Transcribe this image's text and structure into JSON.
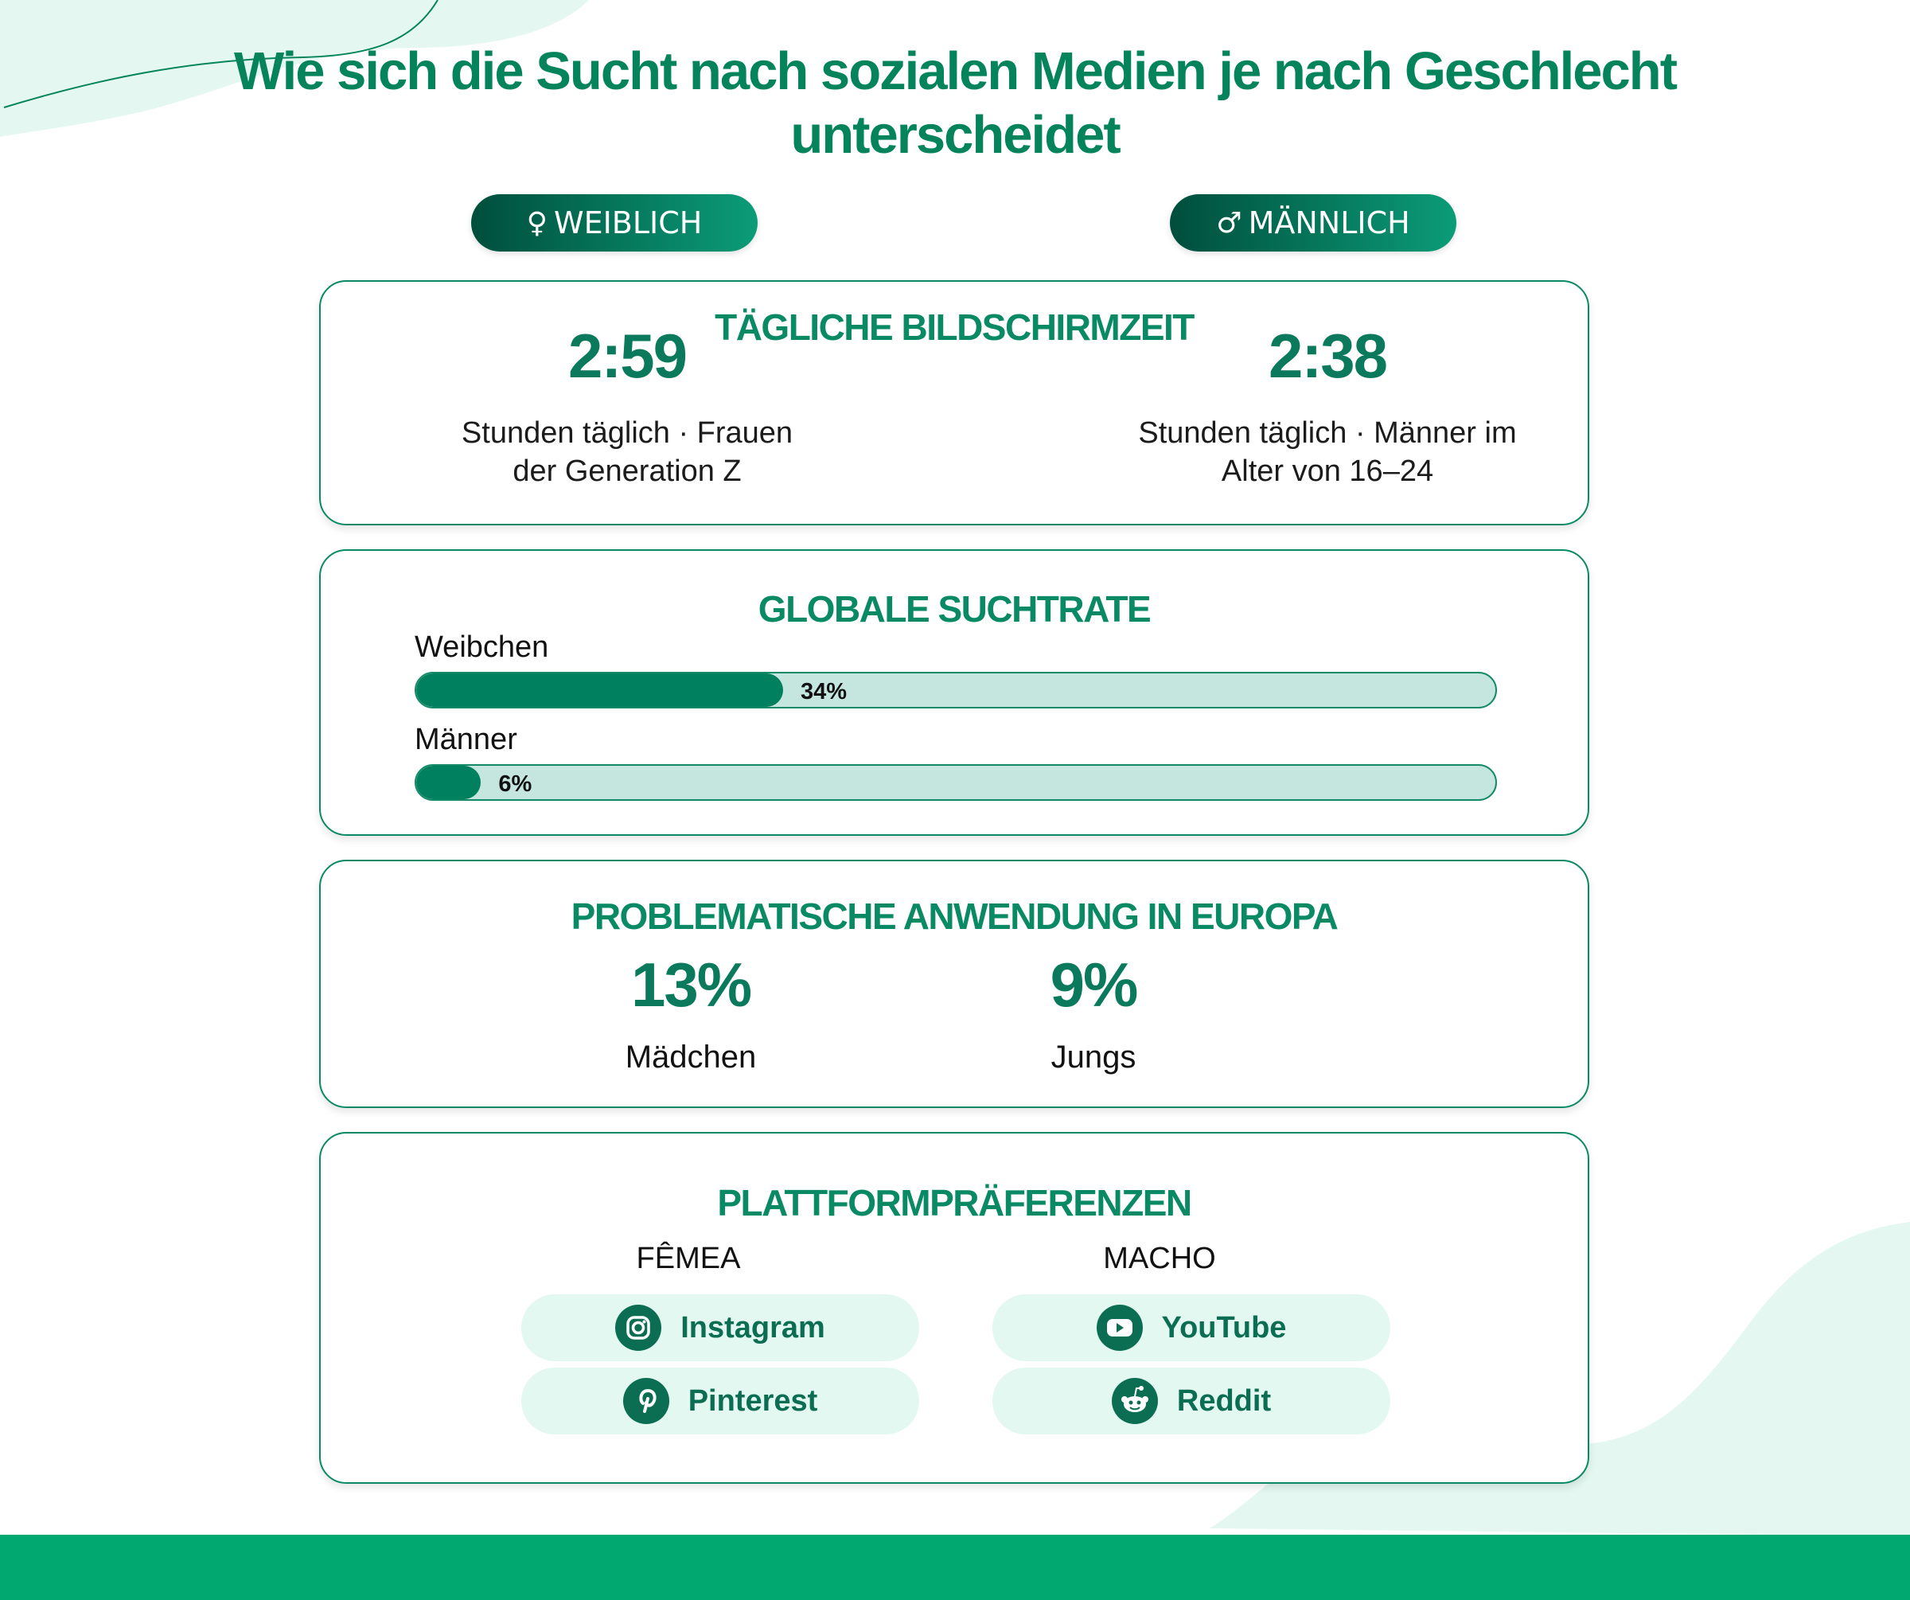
{
  "title": "Wie sich die Sucht nach sozialen Medien je nach Geschlecht unterscheidet",
  "genders": {
    "female": {
      "symbol": "♀",
      "label": "WEIBLICH"
    },
    "male": {
      "symbol": "♂",
      "label": "MÄNNLICH"
    }
  },
  "screen_time": {
    "title": "TÄGLICHE BILDSCHIRMZEIT",
    "female_value": "2:59",
    "female_desc_1": "Stunden täglich · Frauen",
    "female_desc_2": "der Generation Z",
    "male_value": "2:38",
    "male_desc_1": "Stunden täglich · Männer im",
    "male_desc_2": "Alter von 16–24"
  },
  "addiction_rate": {
    "title": "GLOBALE SUCHTRATE",
    "bars": [
      {
        "label": "Weibchen",
        "value_text": "34%",
        "fraction": 0.34
      },
      {
        "label": "Männer",
        "value_text": "6%",
        "fraction": 0.06
      }
    ]
  },
  "europe": {
    "title": "PROBLEMATISCHE ANWENDUNG IN EUROPA",
    "girls_value": "13%",
    "girls_label": "Mädchen",
    "boys_value": "9%",
    "boys_label": "Jungs"
  },
  "platforms": {
    "title": "PLATTFORMPRÄFERENZEN",
    "female_head": "FÊMEA",
    "male_head": "MACHO",
    "female": [
      {
        "name": "Instagram",
        "icon": "instagram-icon"
      },
      {
        "name": "Pinterest",
        "icon": "pinterest-icon"
      }
    ],
    "male": [
      {
        "name": "YouTube",
        "icon": "youtube-icon"
      },
      {
        "name": "Reddit",
        "icon": "reddit-icon"
      }
    ]
  },
  "colors": {
    "primary": "#0a8a64",
    "bar_fill": "#01805f",
    "bar_track": "#c5e6de",
    "footer": "#01a86f",
    "blob": "#e4f8f1"
  }
}
